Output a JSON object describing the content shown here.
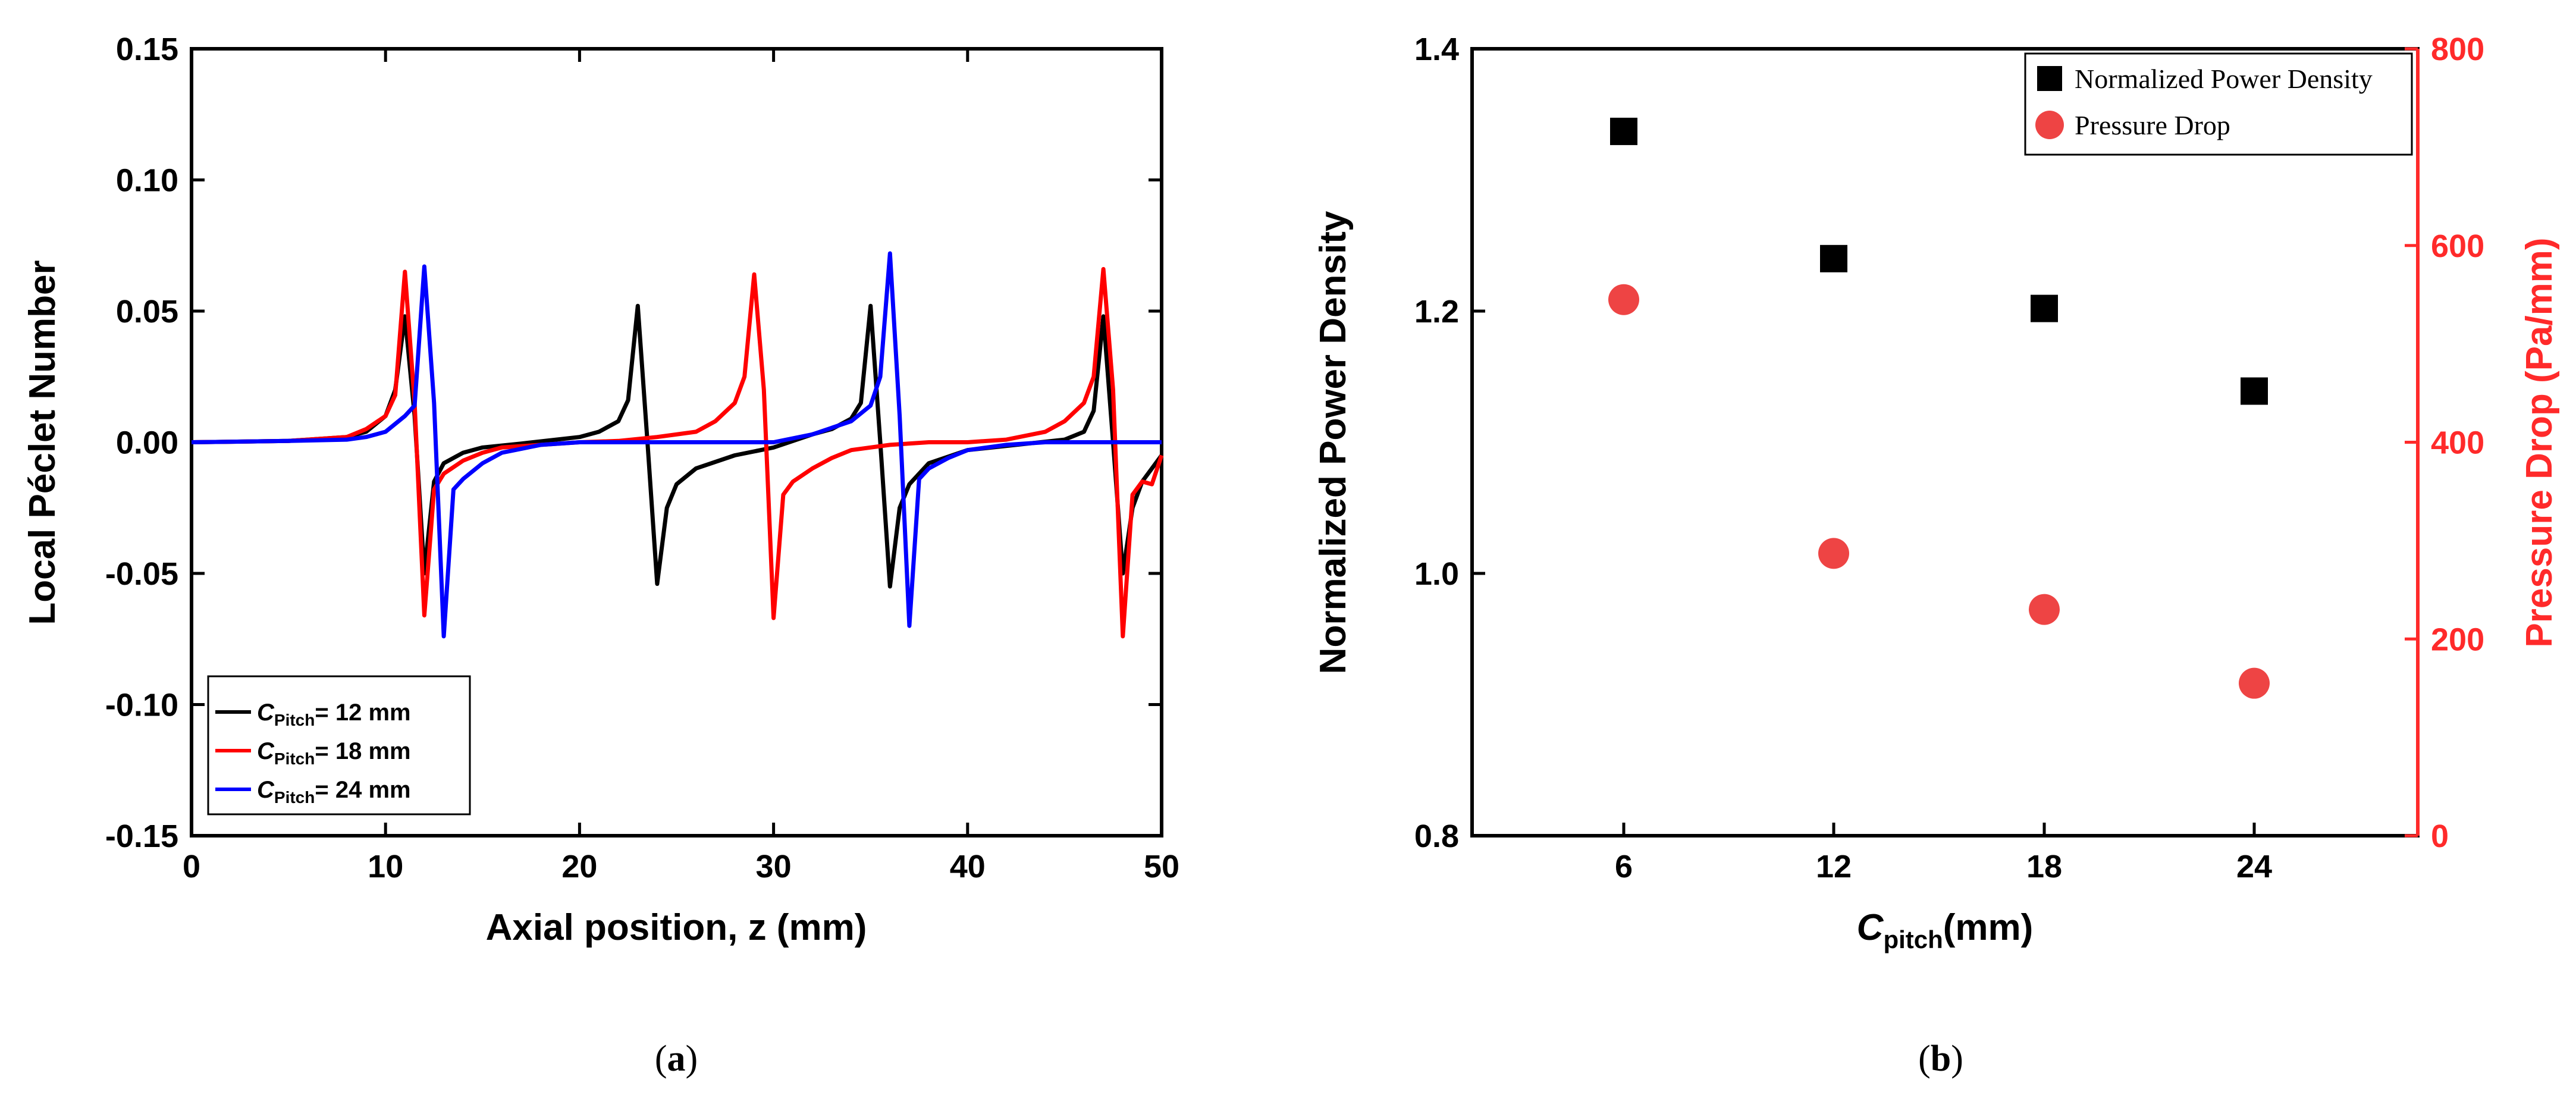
{
  "chart_data": [
    {
      "type": "line",
      "panel": "a",
      "caption_letter": "a",
      "xlabel": "Axial position, z (mm)",
      "ylabel": "Local Péclet Number",
      "xlim": [
        0,
        50
      ],
      "ylim": [
        -0.15,
        0.15
      ],
      "x_ticks": [
        "0",
        "10",
        "20",
        "30",
        "40",
        "50"
      ],
      "y_ticks": [
        "0.15",
        "0.10",
        "0.05",
        "0.00",
        "-0.05",
        "-0.10",
        "-0.15"
      ],
      "grid": false,
      "legend_position": "bottom-left",
      "series": [
        {
          "legend_symbol": "C",
          "legend_sub": "Pitch",
          "legend_suffix": "= 12 mm",
          "color": "#000000",
          "x": [
            0,
            5,
            8,
            9,
            10,
            10.5,
            11,
            11.5,
            12,
            12.5,
            13,
            14,
            15,
            17,
            20,
            21,
            22,
            22.5,
            23,
            23.5,
            24,
            24.5,
            25,
            26,
            28,
            30,
            32,
            33,
            34,
            34.5,
            35,
            35.5,
            36,
            36.5,
            37,
            38,
            40,
            45,
            46,
            46.5,
            47,
            47.5,
            48,
            48.5,
            49,
            50
          ],
          "y": [
            0,
            0.0005,
            0.002,
            0.004,
            0.01,
            0.02,
            0.048,
            0.01,
            -0.05,
            -0.015,
            -0.008,
            -0.004,
            -0.002,
            -0.0005,
            0.002,
            0.004,
            0.008,
            0.016,
            0.052,
            0,
            -0.054,
            -0.025,
            -0.016,
            -0.01,
            -0.005,
            -0.002,
            0.003,
            0.005,
            0.009,
            0.015,
            0.052,
            0,
            -0.055,
            -0.025,
            -0.016,
            -0.008,
            -0.003,
            0.001,
            0.004,
            0.012,
            0.048,
            0,
            -0.05,
            -0.025,
            -0.015,
            -0.005
          ]
        },
        {
          "legend_symbol": "C",
          "legend_sub": "Pitch",
          "legend_suffix": "= 18 mm",
          "color": "#ff0000",
          "x": [
            0,
            5,
            8,
            9,
            10,
            10.5,
            11,
            11.5,
            12,
            12.5,
            13,
            14,
            15,
            16,
            18,
            20,
            22,
            24,
            26,
            27,
            28,
            28.5,
            29,
            29.5,
            30,
            30.5,
            31,
            32,
            33,
            34,
            36,
            38,
            40,
            42,
            44,
            45,
            46,
            46.5,
            47,
            47.5,
            48,
            48.5,
            49,
            49.5,
            50
          ],
          "y": [
            0,
            0.0005,
            0.002,
            0.005,
            0.01,
            0.018,
            0.065,
            0.015,
            -0.066,
            -0.018,
            -0.012,
            -0.007,
            -0.004,
            -0.002,
            -0.001,
            0,
            0.0005,
            0.002,
            0.004,
            0.008,
            0.015,
            0.025,
            0.064,
            0.02,
            -0.067,
            -0.02,
            -0.015,
            -0.01,
            -0.006,
            -0.003,
            -0.001,
            0,
            0,
            0.001,
            0.004,
            0.008,
            0.015,
            0.025,
            0.066,
            0.02,
            -0.074,
            -0.02,
            -0.015,
            -0.016,
            -0.005
          ]
        },
        {
          "legend_symbol": "C",
          "legend_sub": "Pitch",
          "legend_suffix": "= 24 mm",
          "color": "#0000ff",
          "x": [
            0,
            5,
            8,
            9,
            10,
            11,
            11.5,
            12,
            12.5,
            13,
            13.5,
            14,
            15,
            16,
            18,
            20,
            22,
            24,
            26,
            28,
            30,
            32,
            34,
            35,
            35.5,
            36,
            36.5,
            37,
            37.5,
            38,
            39,
            40,
            42,
            44,
            46,
            48,
            50
          ],
          "y": [
            0,
            0.0005,
            0.001,
            0.002,
            0.004,
            0.01,
            0.014,
            0.067,
            0.015,
            -0.074,
            -0.018,
            -0.014,
            -0.008,
            -0.004,
            -0.001,
            0,
            0,
            0,
            0,
            0,
            0,
            0.003,
            0.008,
            0.014,
            0.025,
            0.072,
            0.01,
            -0.07,
            -0.014,
            -0.01,
            -0.006,
            -0.003,
            -0.001,
            0,
            0,
            0,
            0
          ]
        }
      ]
    },
    {
      "type": "scatter",
      "panel": "b",
      "caption_letter": "b",
      "xlabel_symbol": "C",
      "xlabel_sub": "pitch",
      "xlabel_suffix": "(mm)",
      "ylabel": "Normalized Power Density",
      "y2label": "Pressure Drop (Pa/mm)",
      "categories": [
        "6",
        "12",
        "18",
        "24"
      ],
      "ylim": [
        0.8,
        1.4
      ],
      "y2lim": [
        0,
        800
      ],
      "y_ticks": [
        "0.8",
        "1.0",
        "1.2",
        "1.4"
      ],
      "y2_ticks": [
        "0",
        "200",
        "400",
        "600",
        "800"
      ],
      "grid": false,
      "legend_position": "top-right",
      "series": [
        {
          "name": "Normalized Power Density",
          "axis": "left",
          "marker": "square",
          "color": "#000000",
          "values": [
            1.337,
            1.24,
            1.202,
            1.139
          ]
        },
        {
          "name": "Pressure Drop",
          "axis": "right",
          "marker": "circle",
          "color": "#ee4444",
          "values": [
            545,
            287,
            230,
            155
          ]
        }
      ]
    }
  ]
}
